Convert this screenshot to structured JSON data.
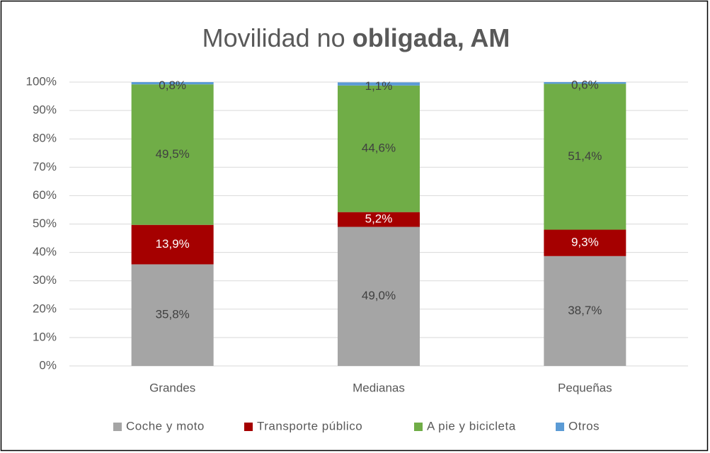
{
  "chart_data": {
    "type": "stacked_bar",
    "title": [
      "Movilidad no",
      "obligada, AM"
    ],
    "categories": [
      "Grandes",
      "Medianas",
      "Pequeñas"
    ],
    "series": [
      {
        "name": "Coche y moto",
        "color": "#a5a5a5",
        "values": [
          35.8,
          49.0,
          38.7
        ],
        "value_labels": [
          "35,8%",
          "49,0%",
          "38,7%"
        ]
      },
      {
        "name": "Transporte público",
        "color": "#a50000",
        "values": [
          13.9,
          5.2,
          9.3
        ],
        "value_labels": [
          "13,9%",
          "5,2%",
          "9,3%"
        ]
      },
      {
        "name": "A pie y bicicleta",
        "color": "#70ad47",
        "values": [
          49.5,
          44.6,
          51.4
        ],
        "value_labels": [
          "49,5%",
          "44,6%",
          "51,4%"
        ]
      },
      {
        "name": "Otros",
        "color": "#5b9bd5",
        "values": [
          0.8,
          1.1,
          0.6
        ],
        "value_labels": [
          "0,8%",
          "1,1%",
          "0,6%"
        ]
      }
    ],
    "ylim": [
      0,
      100
    ],
    "yticks": [
      {
        "value": 0,
        "label": "0%"
      },
      {
        "value": 10,
        "label": "10%"
      },
      {
        "value": 20,
        "label": "20%"
      },
      {
        "value": 30,
        "label": "30%"
      },
      {
        "value": 40,
        "label": "40%"
      },
      {
        "value": 50,
        "label": "50%"
      },
      {
        "value": 60,
        "label": "60%"
      },
      {
        "value": 70,
        "label": "70%"
      },
      {
        "value": 80,
        "label": "80%"
      },
      {
        "value": 90,
        "label": "90%"
      },
      {
        "value": 100,
        "label": "100%"
      }
    ],
    "grid": true,
    "legend": "bottom"
  }
}
